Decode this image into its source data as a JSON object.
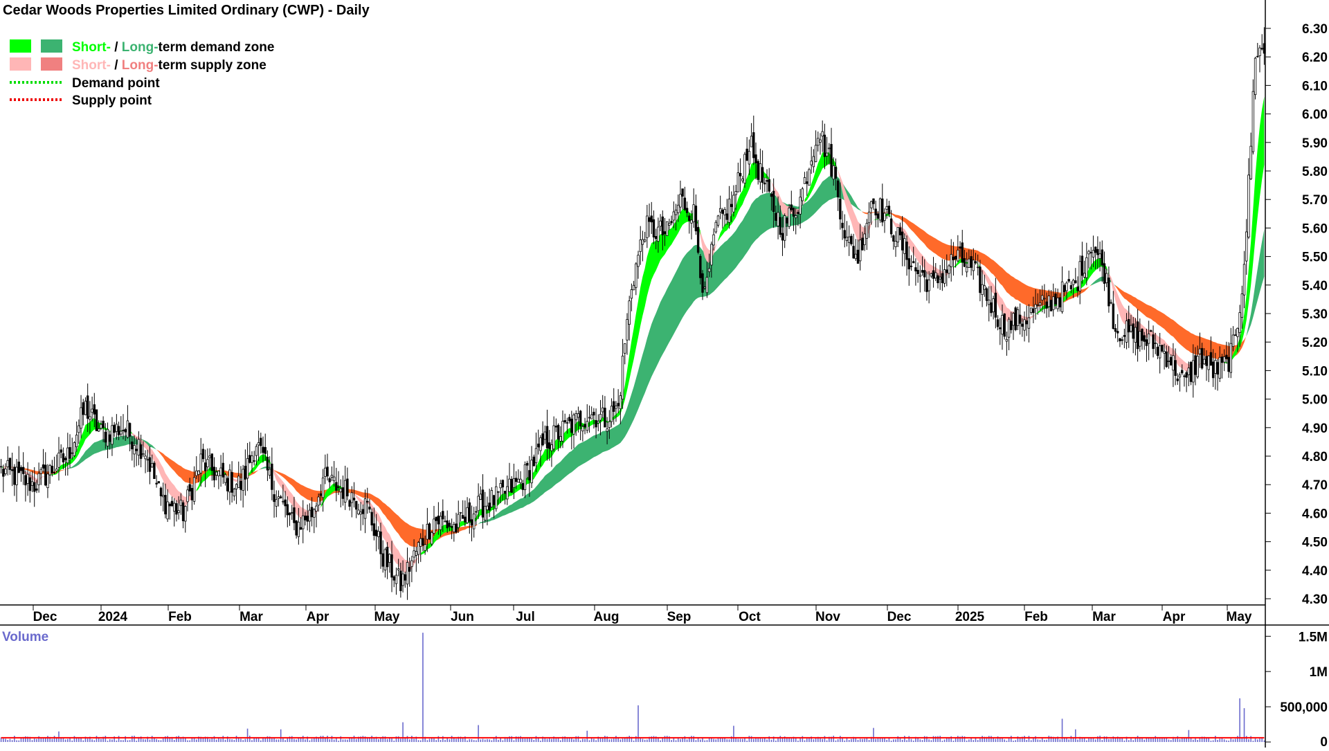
{
  "title": "Cedar Woods Properties Limited Ordinary (CWP) - Daily",
  "legend": {
    "demand_zone": {
      "short": "Short-",
      "sep": " / ",
      "long": "Long-",
      "rest": "term demand zone"
    },
    "supply_zone": {
      "short": "Short-",
      "sep": " / ",
      "long": "Long-",
      "rest": "term supply zone"
    },
    "demand_point": "Demand point",
    "supply_point": "Supply point"
  },
  "colors": {
    "short_demand": "#00ff00",
    "long_demand": "#3cb371",
    "short_supply": "#ffb6b6",
    "long_supply": "#ff6a2a",
    "supply_band_light": "#f08080",
    "candle": "#000000",
    "volume_bar": "#6a6acd",
    "volume_avg": "#ff0000",
    "volume_label": "#6a6acd"
  },
  "volume_panel": {
    "label": "Volume"
  },
  "chart_data": [
    {
      "type": "candlestick",
      "title": "Cedar Woods Properties Limited Ordinary (CWP) - Daily",
      "x_tick_labels": [
        "Dec",
        "2024",
        "Feb",
        "Mar",
        "Apr",
        "May",
        "Jun",
        "Jul",
        "Aug",
        "Sep",
        "Oct",
        "Nov",
        "Dec",
        "2025",
        "Feb",
        "Mar",
        "Apr",
        "May"
      ],
      "y_tick_labels": [
        "4.30",
        "4.40",
        "4.50",
        "4.60",
        "4.70",
        "4.80",
        "4.90",
        "5.00",
        "5.10",
        "5.20",
        "5.30",
        "5.40",
        "5.50",
        "5.60",
        "5.70",
        "5.80",
        "5.90",
        "6.00",
        "6.10",
        "6.20",
        "6.30"
      ],
      "ylim": [
        4.26,
        6.35
      ],
      "approx_close_path": [
        {
          "x": 0,
          "close": 4.75
        },
        {
          "x": 15,
          "close": 4.7
        },
        {
          "x": 30,
          "close": 4.8
        },
        {
          "x": 38,
          "close": 4.97
        },
        {
          "x": 45,
          "close": 4.88
        },
        {
          "x": 55,
          "close": 4.9
        },
        {
          "x": 65,
          "close": 4.82
        },
        {
          "x": 72,
          "close": 4.65
        },
        {
          "x": 82,
          "close": 4.6
        },
        {
          "x": 90,
          "close": 4.78
        },
        {
          "x": 100,
          "close": 4.72
        },
        {
          "x": 108,
          "close": 4.7
        },
        {
          "x": 115,
          "close": 4.85
        },
        {
          "x": 122,
          "close": 4.7
        },
        {
          "x": 132,
          "close": 4.55
        },
        {
          "x": 140,
          "close": 4.6
        },
        {
          "x": 145,
          "close": 4.72
        },
        {
          "x": 155,
          "close": 4.68
        },
        {
          "x": 165,
          "close": 4.62
        },
        {
          "x": 172,
          "close": 4.45
        },
        {
          "x": 180,
          "close": 4.35
        },
        {
          "x": 188,
          "close": 4.48
        },
        {
          "x": 195,
          "close": 4.58
        },
        {
          "x": 205,
          "close": 4.55
        },
        {
          "x": 215,
          "close": 4.62
        },
        {
          "x": 225,
          "close": 4.66
        },
        {
          "x": 235,
          "close": 4.72
        },
        {
          "x": 245,
          "close": 4.85
        },
        {
          "x": 255,
          "close": 4.9
        },
        {
          "x": 265,
          "close": 4.95
        },
        {
          "x": 272,
          "close": 4.93
        },
        {
          "x": 278,
          "close": 4.97
        },
        {
          "x": 281,
          "close": 5.2
        },
        {
          "x": 284,
          "close": 5.4
        },
        {
          "x": 290,
          "close": 5.6
        },
        {
          "x": 300,
          "close": 5.58
        },
        {
          "x": 306,
          "close": 5.7
        },
        {
          "x": 312,
          "close": 5.65
        },
        {
          "x": 317,
          "close": 5.35
        },
        {
          "x": 322,
          "close": 5.6
        },
        {
          "x": 330,
          "close": 5.7
        },
        {
          "x": 337,
          "close": 5.9
        },
        {
          "x": 345,
          "close": 5.72
        },
        {
          "x": 352,
          "close": 5.6
        },
        {
          "x": 360,
          "close": 5.7
        },
        {
          "x": 368,
          "close": 5.95
        },
        {
          "x": 375,
          "close": 5.8
        },
        {
          "x": 381,
          "close": 5.55
        },
        {
          "x": 386,
          "close": 5.5
        },
        {
          "x": 392,
          "close": 5.7
        },
        {
          "x": 398,
          "close": 5.65
        },
        {
          "x": 405,
          "close": 5.55
        },
        {
          "x": 412,
          "close": 5.45
        },
        {
          "x": 420,
          "close": 5.4
        },
        {
          "x": 430,
          "close": 5.5
        },
        {
          "x": 438,
          "close": 5.45
        },
        {
          "x": 445,
          "close": 5.35
        },
        {
          "x": 452,
          "close": 5.25
        },
        {
          "x": 460,
          "close": 5.28
        },
        {
          "x": 468,
          "close": 5.32
        },
        {
          "x": 476,
          "close": 5.36
        },
        {
          "x": 484,
          "close": 5.4
        },
        {
          "x": 491,
          "close": 5.55
        },
        {
          "x": 497,
          "close": 5.45
        },
        {
          "x": 502,
          "close": 5.25
        },
        {
          "x": 510,
          "close": 5.22
        },
        {
          "x": 518,
          "close": 5.2
        },
        {
          "x": 526,
          "close": 5.15
        },
        {
          "x": 533,
          "close": 5.05
        },
        {
          "x": 540,
          "close": 5.15
        },
        {
          "x": 546,
          "close": 5.1
        },
        {
          "x": 552,
          "close": 5.12
        },
        {
          "x": 556,
          "close": 5.2
        },
        {
          "x": 559,
          "close": 5.4
        },
        {
          "x": 561,
          "close": 5.6
        },
        {
          "x": 563,
          "close": 5.9
        },
        {
          "x": 565,
          "close": 6.22
        }
      ],
      "price_zones_note": "short-term and long-term demand/supply zones shown as shaded bands"
    },
    {
      "type": "bar",
      "title": "Volume",
      "y_tick_labels": [
        "1.5M",
        "1M",
        "500,000",
        "0"
      ],
      "ylim": [
        0,
        1650000
      ],
      "spikes": [
        {
          "x": 190,
          "value": 1550000
        },
        {
          "x": 287,
          "value": 520000
        },
        {
          "x": 558,
          "value": 620000
        },
        {
          "x": 560,
          "value": 480000
        },
        {
          "x": 181,
          "value": 280000
        },
        {
          "x": 111,
          "value": 190000
        },
        {
          "x": 126,
          "value": 180000
        },
        {
          "x": 215,
          "value": 240000
        },
        {
          "x": 478,
          "value": 330000
        },
        {
          "x": 484,
          "value": 180000
        },
        {
          "x": 264,
          "value": 160000
        },
        {
          "x": 26,
          "value": 150000
        },
        {
          "x": 330,
          "value": 230000
        },
        {
          "x": 393,
          "value": 200000
        },
        {
          "x": 535,
          "value": 170000
        }
      ],
      "typical_volume": 60000
    }
  ]
}
